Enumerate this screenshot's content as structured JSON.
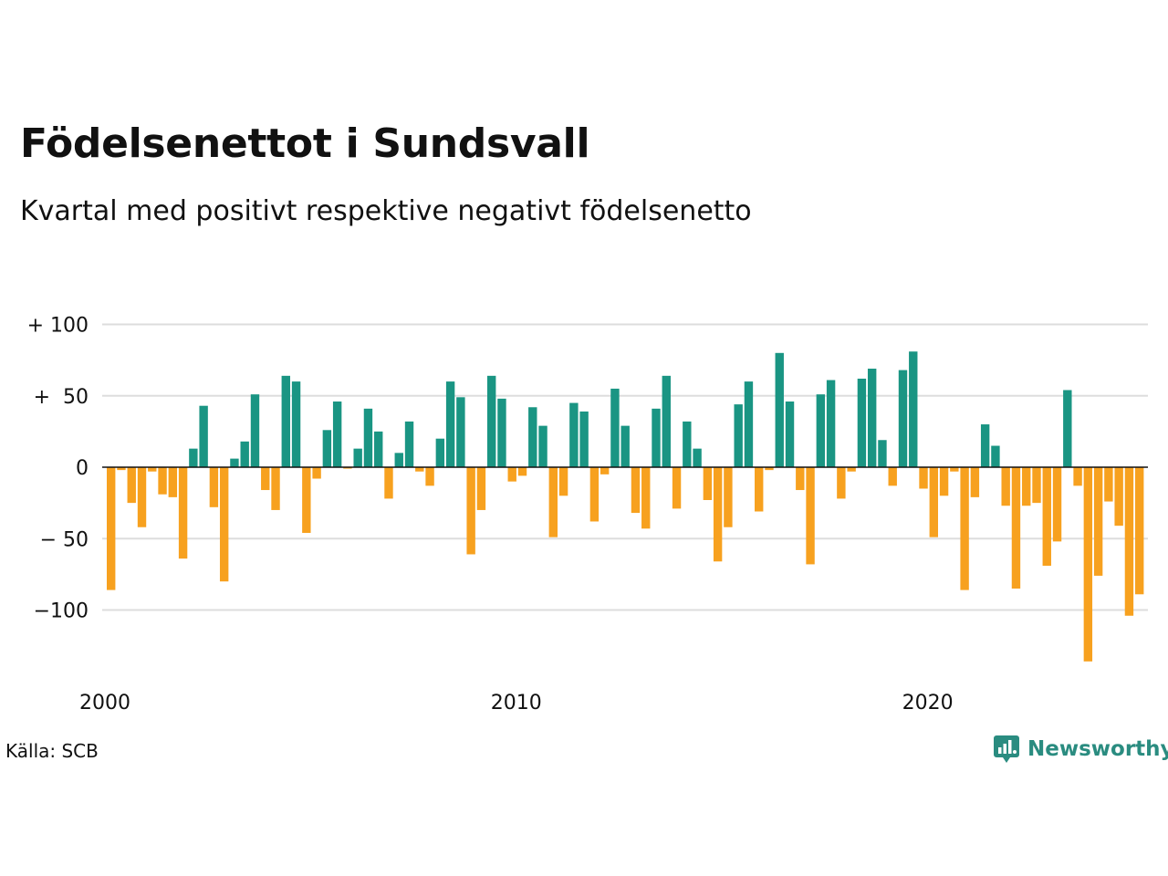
{
  "chart_data": {
    "type": "bar",
    "title": "Födelsenettot i Sundsvall",
    "subtitle": "Kvartal med positivt respektive negativt födelsenetto",
    "source": "Källa: SCB",
    "brand": "Newsworthy",
    "x_start_year": 2000,
    "x_ticks": [
      "2000",
      "2010",
      "2020"
    ],
    "y_ticks": [
      {
        "value": 100,
        "label": "+ 100"
      },
      {
        "value": 50,
        "label": "+  50"
      },
      {
        "value": 0,
        "label": "0"
      },
      {
        "value": -50,
        "label": "− 50"
      },
      {
        "value": -100,
        "label": "−100"
      }
    ],
    "ylim": [
      -145,
      100
    ],
    "grid": true,
    "colors": {
      "positive": "#1a9583",
      "negative": "#f7a11f",
      "grid": "#dddddd",
      "zero_line": "#111111",
      "brand": "#2a8c80"
    },
    "values": [
      -86,
      -2,
      -25,
      -42,
      -3,
      -19,
      -21,
      -64,
      13,
      43,
      -28,
      -80,
      6,
      18,
      51,
      -16,
      -30,
      64,
      60,
      -46,
      -8,
      26,
      46,
      -1,
      13,
      41,
      25,
      -22,
      10,
      32,
      -3,
      -13,
      20,
      60,
      49,
      -61,
      -30,
      64,
      48,
      -10,
      -6,
      42,
      29,
      -49,
      -20,
      45,
      39,
      -38,
      -5,
      55,
      29,
      -32,
      -43,
      41,
      64,
      -29,
      32,
      13,
      -23,
      -66,
      -42,
      44,
      60,
      -31,
      -2,
      80,
      46,
      -16,
      -68,
      51,
      61,
      -22,
      -3,
      62,
      69,
      19,
      -13,
      68,
      81,
      -15,
      -49,
      -20,
      -3,
      -86,
      -21,
      30,
      15,
      -27,
      -85,
      -27,
      -25,
      -69,
      -52,
      54,
      -13,
      -136,
      -76,
      -24,
      -41,
      -104,
      -89
    ]
  }
}
